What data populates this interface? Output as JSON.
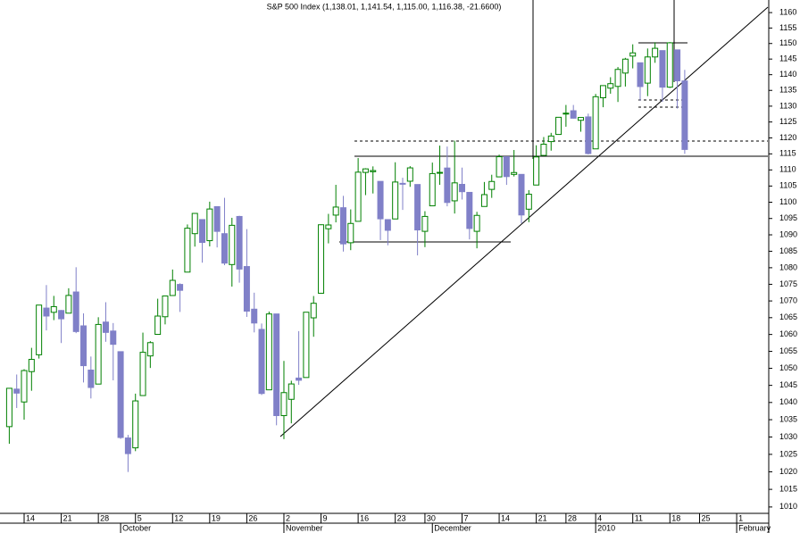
{
  "chart_data": {
    "type": "candlestick",
    "title": "S&P 500 Index (1,138.01, 1,141.54, 1,115.00, 1,116.38, -21.6600)",
    "x": [
      0,
      1,
      2,
      3,
      4,
      5,
      6,
      7,
      8,
      9,
      10,
      11,
      12,
      13,
      14,
      15,
      16,
      17,
      18,
      19,
      20,
      21,
      22,
      23,
      24,
      25,
      26,
      27,
      28,
      29,
      30,
      31,
      32,
      33,
      34,
      35,
      36,
      37,
      38,
      39,
      40,
      41,
      42,
      43,
      44,
      45,
      46,
      47,
      48,
      49,
      50,
      51,
      52,
      53,
      54,
      55,
      56,
      57,
      58,
      59,
      60,
      61,
      62,
      63,
      64,
      65,
      66,
      67,
      68,
      69,
      70,
      71,
      72,
      73,
      74,
      75,
      76,
      77,
      78,
      79,
      80,
      81,
      82,
      83,
      84,
      85,
      86,
      87,
      88,
      89,
      90,
      91
    ],
    "open": [
      1032.99,
      1043.9,
      1040.15,
      1049.03,
      1053.99,
      1067.87,
      1066.6,
      1067.14,
      1066.35,
      1072.69,
      1062.56,
      1049.48,
      1045.38,
      1063.69,
      1061.02,
      1054.91,
      1029.71,
      1026.87,
      1042.02,
      1053.65,
      1060.03,
      1065.28,
      1071.63,
      1074.96,
      1078.68,
      1090.36,
      1094.67,
      1088.22,
      1098.64,
      1090.36,
      1080.96,
      1095.62,
      1080.36,
      1067.54,
      1061.51,
      1043.69,
      1066.11,
      1036.18,
      1040.92,
      1047.14,
      1047.3,
      1064.95,
      1072.31,
      1091.86,
      1096.04,
      1098.31,
      1087.59,
      1094.13,
      1109.22,
      1109.44,
      1106.44,
      1094.66,
      1094.86,
      1105.83,
      1106.49,
      1105.47,
      1091.07,
      1098.89,
      1109.03,
      1110.59,
      1100.43,
      1105.52,
      1103.04,
      1091.07,
      1098.69,
      1103.96,
      1107.84,
      1114.11,
      1108.61,
      1108.61,
      1097.86,
      1105.31,
      1114.51,
      1118.84,
      1121.08,
      1127.53,
      1128.55,
      1125.53,
      1126.6,
      1116.56,
      1132.66,
      1135.71,
      1136.27,
      1140.52,
      1145.96,
      1143.81,
      1137.31,
      1145.68,
      1147.72,
      1136.03,
      1147.95,
      1138.01
    ],
    "high": [
      1044.14,
      1048.18,
      1049.74,
      1056.04,
      1068.76,
      1074.77,
      1071.52,
      1067.28,
      1073.81,
      1080.15,
      1066.29,
      1053.47,
      1065.13,
      1069.62,
      1063.4,
      1054.91,
      1030.6,
      1042.58,
      1060.55,
      1058.02,
      1070.67,
      1071.51,
      1079.46,
      1075.3,
      1093.17,
      1096.56,
      1094.67,
      1100.17,
      1098.64,
      1101.36,
      1095.21,
      1095.83,
      1091.75,
      1072.48,
      1063.26,
      1066.83,
      1066.11,
      1052.18,
      1046.36,
      1061,
      1066.65,
      1071.48,
      1093.19,
      1096.42,
      1105.37,
      1101.97,
      1097.79,
      1113.69,
      1110.52,
      1111.1,
      1106.44,
      1094.66,
      1112.38,
      1107.56,
      1111.18,
      1105.47,
      1097.24,
      1112.28,
      1117.58,
      1117.28,
      1119.13,
      1110.72,
      1103.04,
      1097.04,
      1106.25,
      1108.5,
      1114.76,
      1114.11,
      1116.21,
      1108.61,
      1103.74,
      1117.68,
      1120.27,
      1121.58,
      1126.48,
      1130.38,
      1130.38,
      1126.42,
      1127.64,
      1133.87,
      1136.63,
      1139.19,
      1142.46,
      1145.39,
      1149.74,
      1143.81,
      1148.4,
      1150.41,
      1147.77,
      1150.45,
      1147.95,
      1141.54
    ],
    "low": [
      1028.04,
      1038.4,
      1035,
      1043.42,
      1052.87,
      1061.2,
      1064.27,
      1057.46,
      1066.35,
      1060.39,
      1045.85,
      1041.17,
      1045.38,
      1057.83,
      1046.47,
      1029.45,
      1019.95,
      1025.92,
      1042.02,
      1050.1,
      1060.03,
      1063,
      1071.63,
      1066.71,
      1078.68,
      1086.41,
      1081.53,
      1086.48,
      1086.16,
      1080.77,
      1074.31,
      1075.49,
      1065.23,
      1060.62,
      1042.19,
      1043.69,
      1033.38,
      1029.38,
      1033.94,
      1045.15,
      1047.3,
      1059.32,
      1072.31,
      1087.4,
      1093.81,
      1084.9,
      1085.33,
      1094.13,
      1102.19,
      1102.7,
      1088.4,
      1086.81,
      1094.86,
      1097.63,
      1104.75,
      1083.74,
      1086.25,
      1098.89,
      1105.38,
      1098.74,
      1096.52,
      1100.83,
      1088.61,
      1085.89,
      1098.69,
      1101.34,
      1107.84,
      1105.35,
      1107.96,
      1093.52,
      1093.88,
      1105.31,
      1114.51,
      1116,
      1121.08,
      1123.51,
      1126.08,
      1121.94,
      1114.81,
      1116.56,
      1129.66,
      1133.95,
      1131.32,
      1136.22,
      1142.02,
      1131.77,
      1133.18,
      1143.8,
      1131.39,
      1135.77,
      1129.25,
      1115.0
    ],
    "close": [
      1044.14,
      1042.73,
      1049.34,
      1052.63,
      1068.76,
      1065.49,
      1068.3,
      1064.66,
      1071.66,
      1060.87,
      1050.78,
      1044.38,
      1062.98,
      1060.61,
      1057.08,
      1029.85,
      1025.21,
      1040.46,
      1054.72,
      1057.58,
      1065.48,
      1071.49,
      1076.19,
      1073.19,
      1092.02,
      1096.56,
      1087.68,
      1097.91,
      1091.06,
      1081.4,
      1092.91,
      1079.6,
      1066.95,
      1063.41,
      1042.63,
      1066.11,
      1036.19,
      1042.88,
      1045.41,
      1046.5,
      1066.63,
      1069.3,
      1093.08,
      1093.01,
      1098.51,
      1087.24,
      1093.48,
      1109.3,
      1110.32,
      1109.8,
      1094.9,
      1091.38,
      1106.24,
      1105.65,
      1110.63,
      1091.49,
      1095.63,
      1108.86,
      1109.24,
      1099.92,
      1105.98,
      1103.25,
      1091.94,
      1095.95,
      1102.35,
      1106.41,
      1114.11,
      1107.93,
      1109.18,
      1096.08,
      1102.47,
      1114.05,
      1118.02,
      1120.59,
      1126.48,
      1127.78,
      1126.2,
      1126.42,
      1115.1,
      1132.99,
      1136.52,
      1137.14,
      1141.69,
      1144.98,
      1146.98,
      1136.22,
      1145.68,
      1148.46,
      1136.03,
      1150.23,
      1138.04,
      1116.38
    ],
    "up_color": "#008000",
    "down_color": "#8080c8",
    "xlim": [
      -1.25,
      102.2
    ],
    "xticks": [
      {
        "value": 2,
        "label": "14"
      },
      {
        "value": 7,
        "label": "21"
      },
      {
        "value": 12,
        "label": "28"
      },
      {
        "value": 17,
        "label": "5"
      },
      {
        "value": 22,
        "label": "12"
      },
      {
        "value": 27,
        "label": "19"
      },
      {
        "value": 32,
        "label": "26"
      },
      {
        "value": 37,
        "label": "2"
      },
      {
        "value": 42,
        "label": "9"
      },
      {
        "value": 47,
        "label": "16"
      },
      {
        "value": 52,
        "label": "23"
      },
      {
        "value": 56,
        "label": "30"
      },
      {
        "value": 61,
        "label": "7"
      },
      {
        "value": 66,
        "label": "14"
      },
      {
        "value": 71,
        "label": "21"
      },
      {
        "value": 75,
        "label": "28"
      },
      {
        "value": 79,
        "label": "4"
      },
      {
        "value": 84,
        "label": "11"
      },
      {
        "value": 89,
        "label": "18"
      },
      {
        "value": 93,
        "label": "25"
      },
      {
        "value": 98,
        "label": "1"
      }
    ],
    "month_ticks": [
      {
        "value": 15,
        "label": "October"
      },
      {
        "value": 37,
        "label": "November"
      },
      {
        "value": 57,
        "label": "December"
      },
      {
        "value": 79,
        "label": "2010"
      },
      {
        "value": 98,
        "label": "February"
      }
    ],
    "ylim": [
      1008.2,
      1164.1
    ],
    "log_y": true,
    "yticks": [
      1010,
      1015,
      1020,
      1025,
      1030,
      1035,
      1040,
      1045,
      1050,
      1055,
      1060,
      1065,
      1070,
      1075,
      1080,
      1085,
      1090,
      1095,
      1100,
      1105,
      1110,
      1115,
      1120,
      1125,
      1130,
      1135,
      1140,
      1145,
      1150,
      1155,
      1160
    ],
    "grid": false
  }
}
